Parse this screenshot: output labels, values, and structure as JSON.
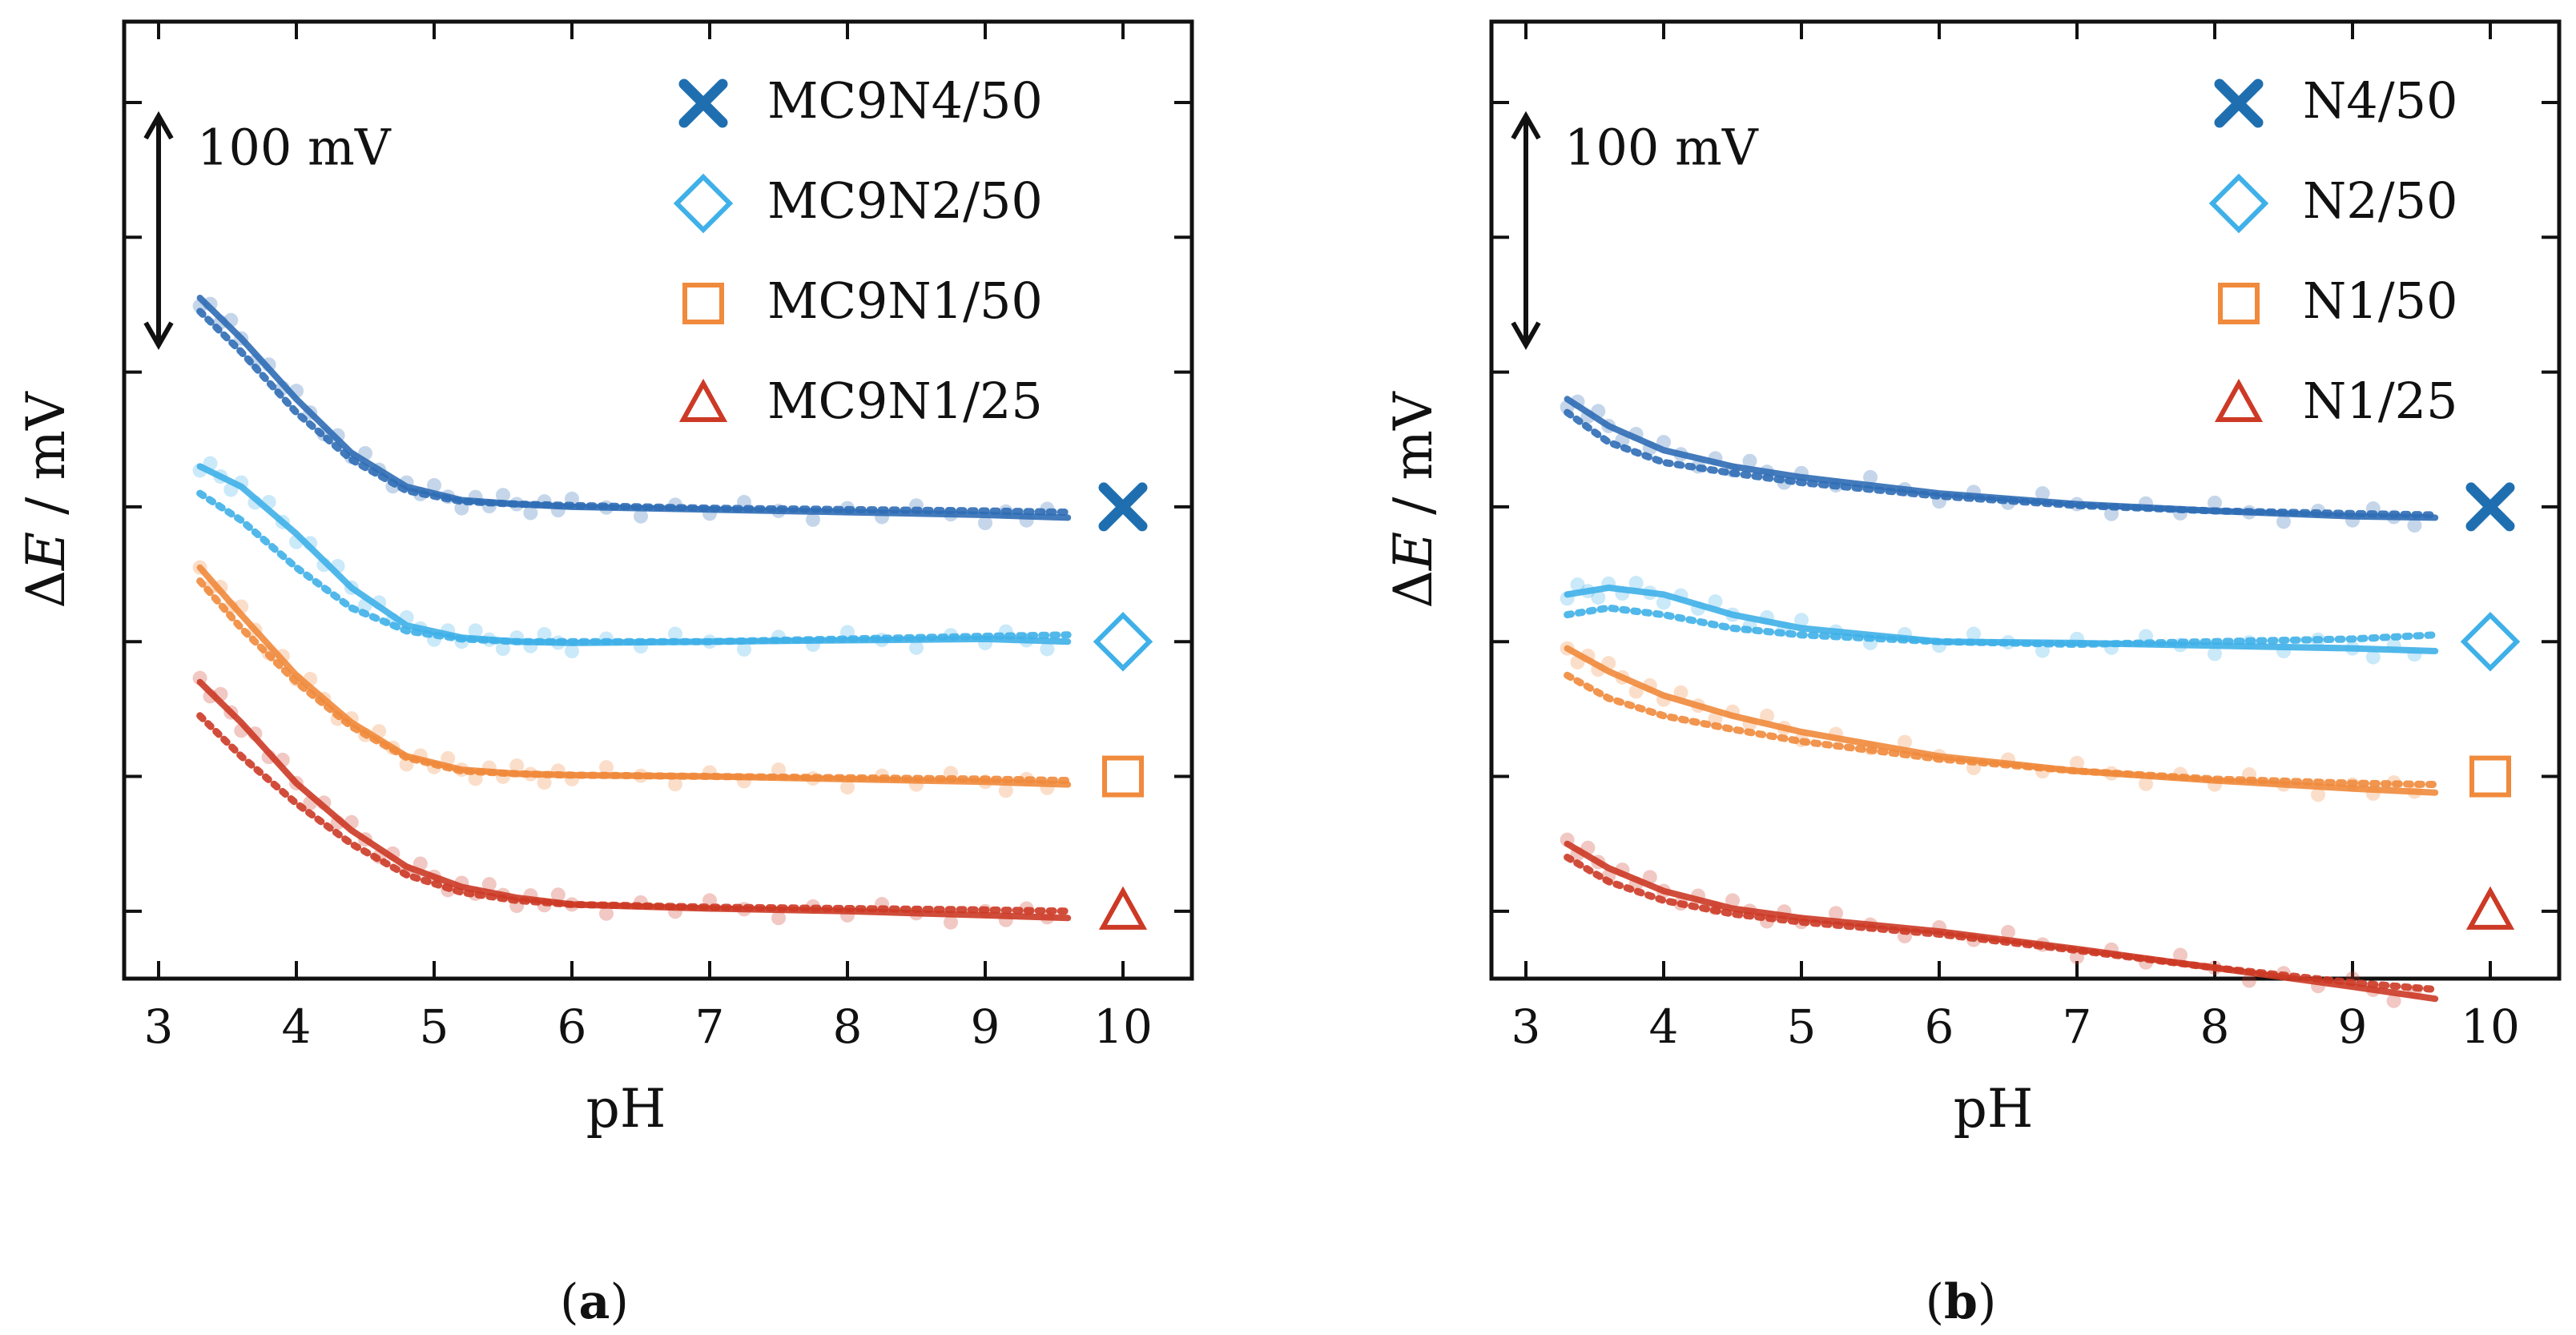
{
  "colors": {
    "N4": "#2f6db5",
    "N2": "#3fb0e8",
    "N1_50": "#f08a3c",
    "N1_25": "#cc3a26",
    "N4_marker": "#1f6fb0"
  },
  "captions": [
    {
      "open": "(",
      "letter": "a",
      "close": ")"
    },
    {
      "open": "(",
      "letter": "b",
      "close": ")"
    }
  ],
  "chart_data": [
    {
      "type": "line",
      "title": "",
      "xlabel": "pH",
      "ylabel_delta": "Δ",
      "ylabel_var": "E",
      "ylabel_unit": " / mV",
      "xlim": [
        2.75,
        10.5
      ],
      "ylim": [
        -0.5,
        6.6
      ],
      "x_ticks": [
        "3",
        "4",
        "5",
        "6",
        "7",
        "8",
        "9",
        "10"
      ],
      "scale_bar": {
        "label": "100 mV",
        "ymin": 4.2,
        "ymax": 5.9,
        "x": 3.0
      },
      "series": [
        {
          "name": "MC9N4/50",
          "key": "N4",
          "marker": "cross",
          "marker_x": 10,
          "marker_y": 3.0,
          "x": [
            3.3,
            3.6,
            4.0,
            4.4,
            4.8,
            5.2,
            5.6,
            6.0,
            7.0,
            8.0,
            9.0,
            9.6
          ],
          "values": [
            4.55,
            4.25,
            3.8,
            3.4,
            3.15,
            3.05,
            3.02,
            3.0,
            2.98,
            2.96,
            2.94,
            2.92
          ],
          "fit_dotted": [
            4.45,
            4.15,
            3.7,
            3.35,
            3.12,
            3.04,
            3.02,
            3.01,
            2.99,
            2.98,
            2.97,
            2.96
          ]
        },
        {
          "name": "MC9N2/50",
          "key": "N2",
          "marker": "diamond",
          "marker_x": 10,
          "marker_y": 2.0,
          "x": [
            3.3,
            3.6,
            4.0,
            4.4,
            4.8,
            5.2,
            5.6,
            6.0,
            7.0,
            8.0,
            9.0,
            9.6
          ],
          "values": [
            3.3,
            3.15,
            2.8,
            2.4,
            2.12,
            2.03,
            2.0,
            1.99,
            2.0,
            2.01,
            2.02,
            2.0
          ],
          "fit_dotted": [
            3.1,
            2.9,
            2.55,
            2.25,
            2.08,
            2.02,
            2.0,
            2.0,
            2.0,
            2.02,
            2.04,
            2.05
          ]
        },
        {
          "name": "MC9N1/50",
          "key": "N1_50",
          "marker": "square",
          "marker_x": 10,
          "marker_y": 1.0,
          "x": [
            3.3,
            3.6,
            4.0,
            4.4,
            4.8,
            5.2,
            5.6,
            6.0,
            7.0,
            8.0,
            9.0,
            9.6
          ],
          "values": [
            2.55,
            2.2,
            1.75,
            1.4,
            1.15,
            1.05,
            1.02,
            1.01,
            1.0,
            0.98,
            0.96,
            0.94
          ],
          "fit_dotted": [
            2.45,
            2.1,
            1.7,
            1.37,
            1.14,
            1.04,
            1.02,
            1.01,
            1.0,
            0.99,
            0.98,
            0.97
          ]
        },
        {
          "name": "MC9N1/25",
          "key": "N1_25",
          "marker": "triangle",
          "marker_x": 10,
          "marker_y": 0.0,
          "x": [
            3.3,
            3.6,
            4.0,
            4.4,
            4.8,
            5.2,
            5.6,
            6.0,
            7.0,
            8.0,
            9.0,
            9.6
          ],
          "values": [
            1.7,
            1.4,
            0.95,
            0.6,
            0.33,
            0.18,
            0.1,
            0.05,
            0.02,
            0.0,
            -0.03,
            -0.05
          ],
          "fit_dotted": [
            1.45,
            1.15,
            0.8,
            0.5,
            0.27,
            0.14,
            0.08,
            0.05,
            0.03,
            0.02,
            0.01,
            0.0
          ]
        }
      ],
      "legend": {
        "location": "top-right",
        "entries": [
          "MC9N4/50",
          "MC9N2/50",
          "MC9N1/50",
          "MC9N1/25"
        ]
      }
    },
    {
      "type": "line",
      "title": "",
      "xlabel": "pH",
      "ylabel_delta": "Δ",
      "ylabel_var": "E",
      "ylabel_unit": " / mV",
      "xlim": [
        2.75,
        10.5
      ],
      "ylim": [
        -0.5,
        6.6
      ],
      "x_ticks": [
        "3",
        "4",
        "5",
        "6",
        "7",
        "8",
        "9",
        "10"
      ],
      "scale_bar": {
        "label": "100 mV",
        "ymin": 4.2,
        "ymax": 5.9,
        "x": 3.0
      },
      "series": [
        {
          "name": "N4/50",
          "key": "N4",
          "marker": "cross",
          "marker_x": 10,
          "marker_y": 3.0,
          "x": [
            3.3,
            3.6,
            4.0,
            4.5,
            5.0,
            6.0,
            7.0,
            8.0,
            9.0,
            9.6
          ],
          "values": [
            3.8,
            3.6,
            3.42,
            3.3,
            3.22,
            3.1,
            3.02,
            2.97,
            2.93,
            2.92
          ],
          "fit_dotted": [
            3.7,
            3.48,
            3.33,
            3.25,
            3.18,
            3.08,
            3.01,
            2.97,
            2.95,
            2.94
          ]
        },
        {
          "name": "N2/50",
          "key": "N2",
          "marker": "diamond",
          "marker_x": 10,
          "marker_y": 2.0,
          "x": [
            3.3,
            3.6,
            4.0,
            4.5,
            5.0,
            6.0,
            7.0,
            8.0,
            9.0,
            9.6
          ],
          "values": [
            2.35,
            2.4,
            2.35,
            2.2,
            2.1,
            2.0,
            1.99,
            1.97,
            1.95,
            1.93
          ],
          "fit_dotted": [
            2.2,
            2.25,
            2.2,
            2.1,
            2.05,
            2.0,
            1.98,
            2.0,
            2.02,
            2.05
          ]
        },
        {
          "name": "N1/50",
          "key": "N1_50",
          "marker": "square",
          "marker_x": 10,
          "marker_y": 1.0,
          "x": [
            3.3,
            3.6,
            4.0,
            4.5,
            5.0,
            6.0,
            7.0,
            8.0,
            9.0,
            9.6
          ],
          "values": [
            1.95,
            1.78,
            1.6,
            1.45,
            1.33,
            1.15,
            1.04,
            0.97,
            0.91,
            0.88
          ],
          "fit_dotted": [
            1.75,
            1.58,
            1.45,
            1.35,
            1.26,
            1.13,
            1.04,
            0.98,
            0.95,
            0.94
          ]
        },
        {
          "name": "N1/25",
          "key": "N1_25",
          "marker": "triangle",
          "marker_x": 10,
          "marker_y": 0.0,
          "x": [
            3.3,
            3.6,
            4.0,
            4.5,
            5.0,
            6.0,
            7.0,
            8.0,
            9.0,
            9.6
          ],
          "values": [
            0.5,
            0.32,
            0.15,
            0.02,
            -0.05,
            -0.15,
            -0.28,
            -0.42,
            -0.56,
            -0.65
          ],
          "fit_dotted": [
            0.4,
            0.22,
            0.08,
            -0.02,
            -0.08,
            -0.17,
            -0.29,
            -0.42,
            -0.53,
            -0.58
          ]
        }
      ],
      "legend": {
        "location": "top-right",
        "entries": [
          "N4/50",
          "N2/50",
          "N1/50",
          "N1/25"
        ]
      }
    }
  ]
}
